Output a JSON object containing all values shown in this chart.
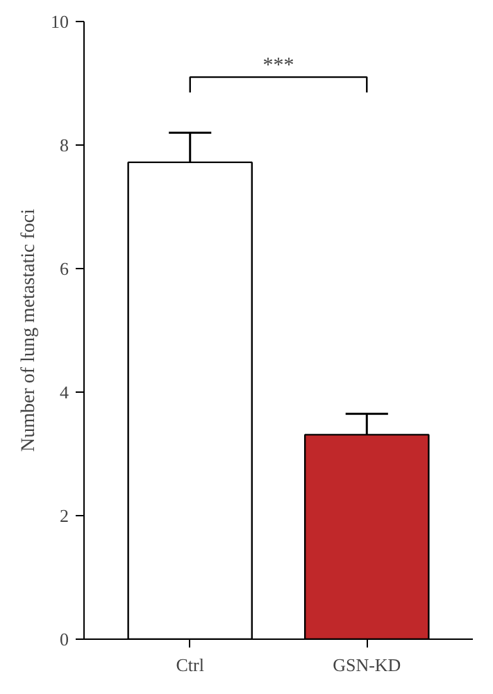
{
  "chart_data": {
    "type": "bar",
    "categories": [
      "Ctrl",
      "GSN-KD"
    ],
    "values": [
      7.72,
      3.31
    ],
    "colors": [
      "#ffffff",
      "#c0282a"
    ],
    "errors": [
      [
        7.72,
        8.2
      ],
      [
        3.31,
        3.65
      ]
    ],
    "ylabel": "Number of lung metastatic foci",
    "ylim": [
      0,
      10
    ],
    "yticks": [
      0,
      2,
      4,
      6,
      8,
      10
    ],
    "annotations": [
      "***"
    ],
    "grid": false
  }
}
